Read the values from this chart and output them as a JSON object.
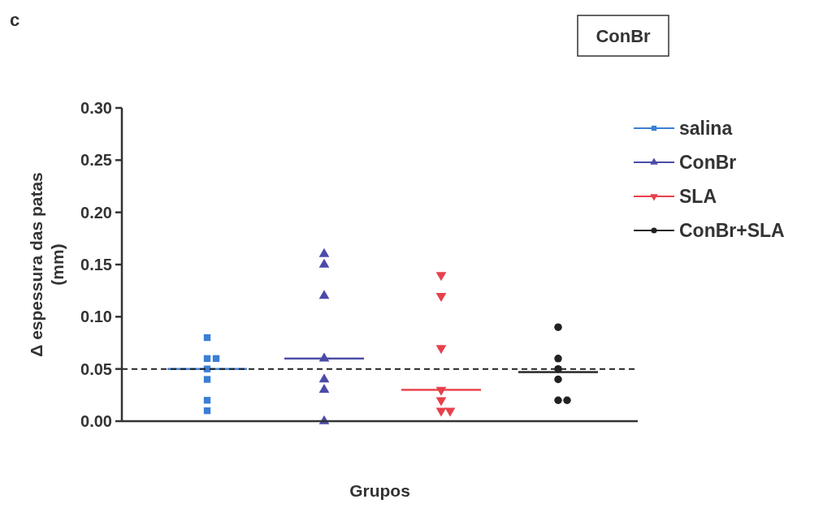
{
  "chart_data": {
    "type": "scatter",
    "title": "ConBr",
    "xlabel": "Grupos",
    "ylabel": "Δ espessura das patas\n(mm)",
    "annotations": [
      "c"
    ],
    "categories": [
      null,
      null,
      null,
      null
    ],
    "ylim": [
      0,
      0.3
    ],
    "yticks": [
      {
        "value": 0,
        "label": "0.00"
      },
      {
        "value": 0.05,
        "label": "0.05"
      },
      {
        "value": 0.1,
        "label": "0.10"
      },
      {
        "value": 0.15,
        "label": "0.15"
      },
      {
        "value": 0.2,
        "label": "0.20"
      },
      {
        "value": 0.25,
        "label": "0.25"
      },
      {
        "value": 0.3,
        "label": "0.30"
      }
    ],
    "tick_labels": "y",
    "legend": "top right",
    "ref_lines": [
      {
        "axis": "y",
        "value": 0.05,
        "color": "#222222",
        "line_style": "dashed"
      }
    ],
    "series": [
      {
        "name": "salina",
        "color": "#3a7fd5",
        "marker": "square",
        "values": [
          0.08,
          null,
          null,
          null
        ]
      },
      {
        "color": "#3a7fd5",
        "marker": "square",
        "values": [
          0.06,
          null,
          null,
          null
        ]
      },
      {
        "color": "#3a7fd5",
        "marker": "square",
        "values": [
          0.06,
          null,
          null,
          null
        ]
      },
      {
        "color": "#3a7fd5",
        "marker": "square",
        "values": [
          0.05,
          null,
          null,
          null
        ]
      },
      {
        "color": "#3a7fd5",
        "marker": "square",
        "values": [
          0.04,
          null,
          null,
          null
        ]
      },
      {
        "color": "#3a7fd5",
        "marker": "square",
        "values": [
          0.02,
          null,
          null,
          null
        ]
      },
      {
        "color": "#3a7fd5",
        "marker": "square",
        "values": [
          0.01,
          null,
          null,
          null
        ]
      },
      {
        "name": "ConBr",
        "color": "#4b4ba8",
        "marker": "triangle",
        "values": [
          null,
          0.16,
          null,
          null
        ]
      },
      {
        "color": "#4b4ba8",
        "marker": "triangle",
        "values": [
          null,
          0.15,
          null,
          null
        ]
      },
      {
        "color": "#4b4ba8",
        "marker": "triangle",
        "values": [
          null,
          0.12,
          null,
          null
        ]
      },
      {
        "color": "#4b4ba8",
        "marker": "triangle",
        "values": [
          null,
          0.06,
          null,
          null
        ]
      },
      {
        "color": "#4b4ba8",
        "marker": "triangle",
        "values": [
          null,
          0.04,
          null,
          null
        ]
      },
      {
        "color": "#4b4ba8",
        "marker": "triangle",
        "values": [
          null,
          0.03,
          null,
          null
        ]
      },
      {
        "color": "#4b4ba8",
        "marker": "triangle",
        "values": [
          null,
          0,
          null,
          null
        ]
      },
      {
        "name": "SLA",
        "color": "#e8404a",
        "marker": "triangle-down",
        "values": [
          null,
          null,
          0.14,
          null
        ]
      },
      {
        "color": "#e8404a",
        "marker": "triangle-down",
        "values": [
          null,
          null,
          0.12,
          null
        ]
      },
      {
        "color": "#e8404a",
        "marker": "triangle-down",
        "values": [
          null,
          null,
          0.07,
          null
        ]
      },
      {
        "color": "#e8404a",
        "marker": "triangle-down",
        "values": [
          null,
          null,
          0.03,
          null
        ]
      },
      {
        "color": "#e8404a",
        "marker": "triangle-down",
        "values": [
          null,
          null,
          0.02,
          null
        ]
      },
      {
        "color": "#e8404a",
        "marker": "triangle-down",
        "values": [
          null,
          null,
          0.01,
          null
        ]
      },
      {
        "color": "#e8404a",
        "marker": "triangle-down",
        "values": [
          null,
          null,
          0.01,
          null
        ]
      },
      {
        "name": "ConBr+SLA",
        "color": "#222222",
        "marker": "circle",
        "values": [
          null,
          null,
          null,
          0.09
        ]
      },
      {
        "color": "#222222",
        "marker": "circle",
        "values": [
          null,
          null,
          null,
          0.06
        ]
      },
      {
        "color": "#222222",
        "marker": "circle",
        "values": [
          null,
          null,
          null,
          0.05
        ]
      },
      {
        "color": "#222222",
        "marker": "circle",
        "values": [
          null,
          null,
          null,
          0.04
        ]
      },
      {
        "color": "#222222",
        "marker": "circle",
        "values": [
          null,
          null,
          null,
          0.02
        ]
      },
      {
        "color": "#222222",
        "marker": "circle",
        "values": [
          null,
          null,
          null,
          0.02
        ]
      },
      {
        "type": "bar",
        "colors": [
          "#3a7fd5",
          "#4b4ba8",
          "#e8404a",
          "#222222"
        ],
        "base": [
          0.05,
          0.06,
          0.03,
          0.047
        ],
        "values": [
          0,
          0,
          0,
          0
        ]
      }
    ]
  }
}
